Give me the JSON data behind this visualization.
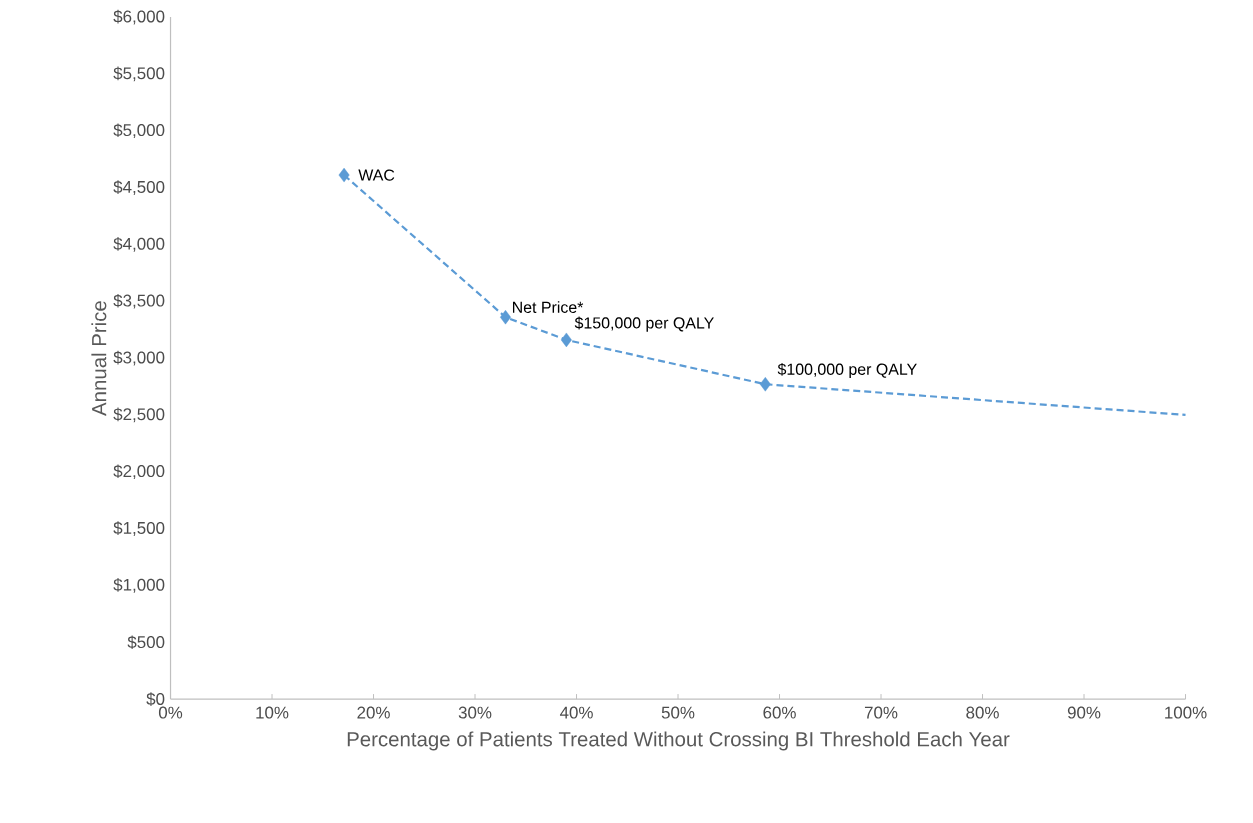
{
  "chart_data": {
    "type": "line",
    "xlabel": "Percentage of Patients Treated Without Crossing BI Threshold Each Year",
    "ylabel": "Annual Price",
    "series": [
      {
        "color": "#5b9bd5",
        "line_style": "dashed",
        "marker": "none",
        "x": [
          17.1,
          33.0,
          39.0,
          58.6,
          100
        ],
        "values": [
          4610,
          3360,
          3160,
          2770,
          2500
        ]
      },
      {
        "type": "scatter",
        "color": "#5b9bd5",
        "marker": "diamond",
        "x": [
          17.1,
          33.0,
          39.0,
          58.6
        ],
        "values": [
          4610,
          3360,
          3160,
          2770
        ]
      }
    ],
    "xlim": [
      0,
      100
    ],
    "ylim": [
      0,
      6000
    ],
    "xticks": [
      {
        "value": 0,
        "label": "0%"
      },
      {
        "value": 10,
        "label": "10%"
      },
      {
        "value": 20,
        "label": "20%"
      },
      {
        "value": 30,
        "label": "30%"
      },
      {
        "value": 40,
        "label": "40%"
      },
      {
        "value": 50,
        "label": "50%"
      },
      {
        "value": 60,
        "label": "60%"
      },
      {
        "value": 70,
        "label": "70%"
      },
      {
        "value": 80,
        "label": "80%"
      },
      {
        "value": 90,
        "label": "90%"
      },
      {
        "value": 100,
        "label": "100%"
      }
    ],
    "yticks": [
      {
        "value": 0,
        "label": "$0"
      },
      {
        "value": 500,
        "label": "$500"
      },
      {
        "value": 1000,
        "label": "$1,000"
      },
      {
        "value": 1500,
        "label": "$1,500"
      },
      {
        "value": 2000,
        "label": "$2,000"
      },
      {
        "value": 2500,
        "label": "$2,500"
      },
      {
        "value": 3000,
        "label": "$3,000"
      },
      {
        "value": 3500,
        "label": "$3,500"
      },
      {
        "value": 4000,
        "label": "$4,000"
      },
      {
        "value": 4500,
        "label": "$4,500"
      },
      {
        "value": 5000,
        "label": "$5,000"
      },
      {
        "value": 5500,
        "label": "$5,500"
      },
      {
        "value": 6000,
        "label": "$6,000"
      }
    ],
    "annotations": [
      {
        "text": "WAC",
        "x": 17.1,
        "y": 4610
      },
      {
        "text": "Net Price*",
        "x": 33.0,
        "y": 3360
      },
      {
        "text": "$150,000 per QALY",
        "x": 39.0,
        "y": 3160
      },
      {
        "text": "$100,000 per QALY",
        "x": 58.6,
        "y": 2770
      }
    ],
    "grid": false,
    "legend": false
  }
}
